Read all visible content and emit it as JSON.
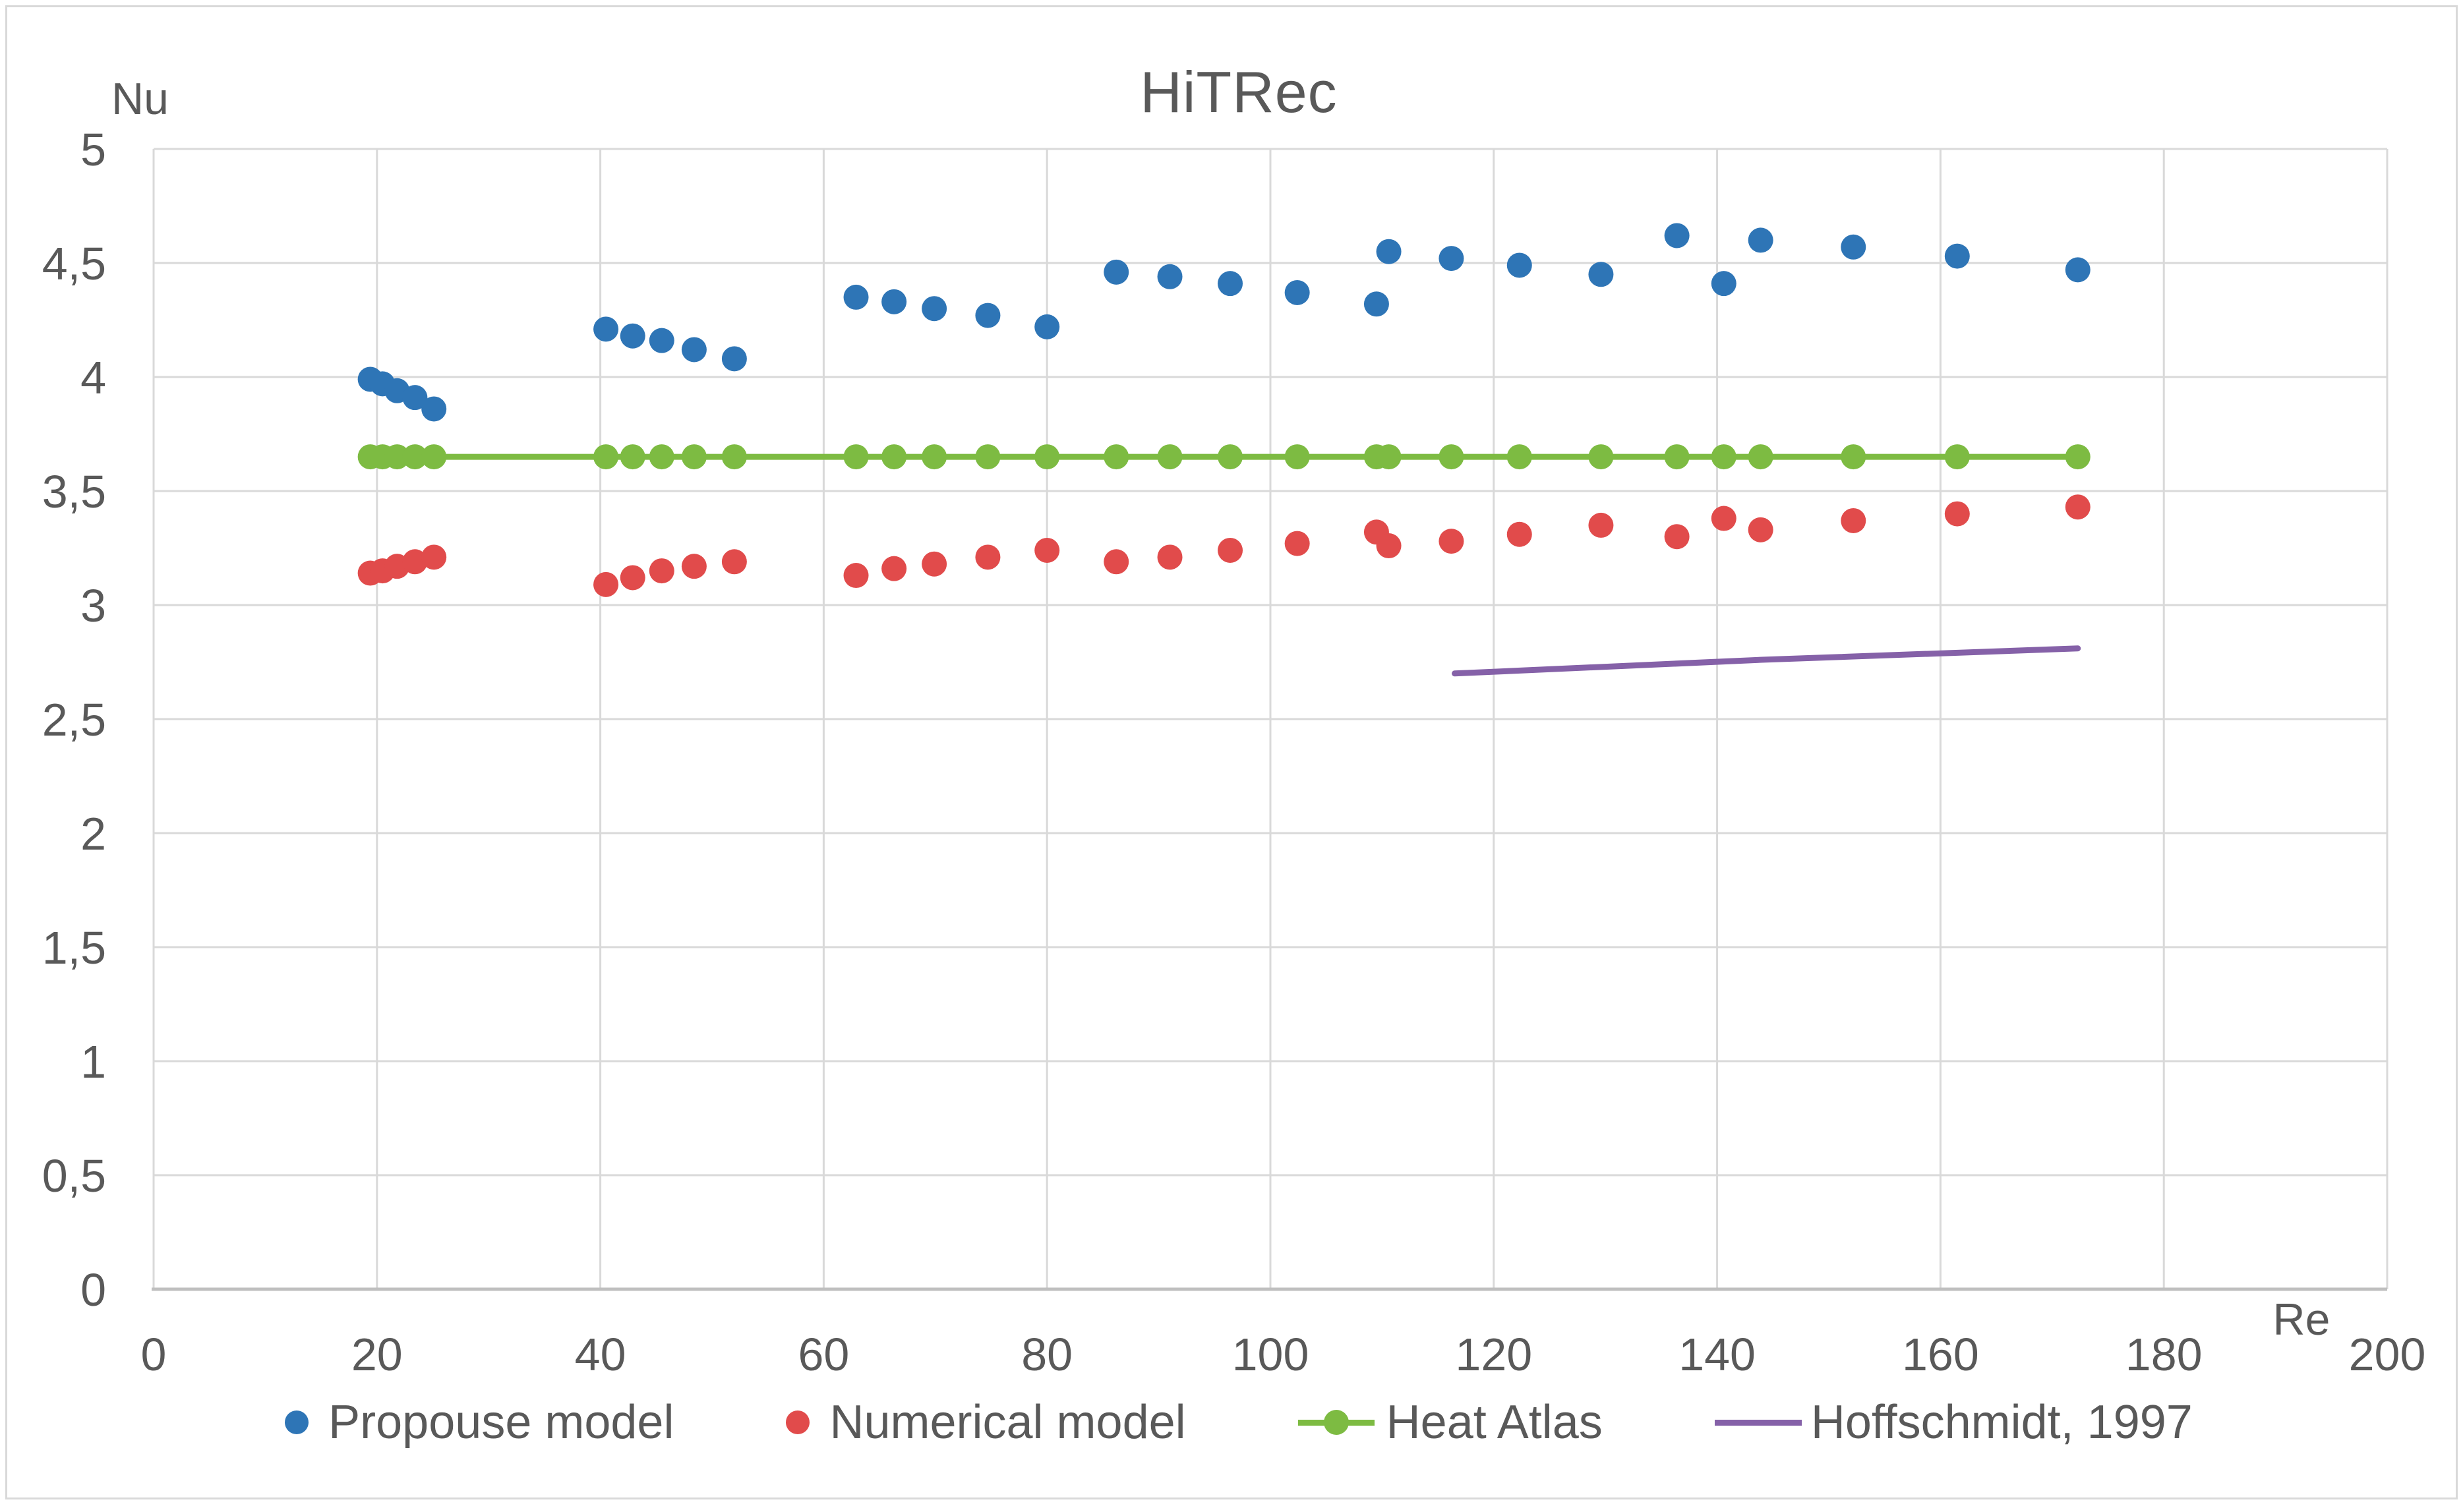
{
  "chart_data": {
    "type": "scatter",
    "title": "HiTRec",
    "xlabel": "Re",
    "ylabel": "Nu",
    "xlim": [
      0,
      200
    ],
    "ylim": [
      0,
      5
    ],
    "grid": true,
    "legend_position": "bottom",
    "x_ticks": {
      "values": [
        0,
        20,
        40,
        60,
        80,
        100,
        120,
        140,
        160,
        180,
        200
      ],
      "labels": [
        "0",
        "20",
        "40",
        "60",
        "80",
        "100",
        "120",
        "140",
        "160",
        "180",
        "200"
      ]
    },
    "y_ticks": {
      "values": [
        0,
        0.5,
        1,
        1.5,
        2,
        2.5,
        3,
        3.5,
        4,
        4.5,
        5
      ],
      "labels": [
        "0",
        "0,5",
        "1",
        "1,5",
        "2",
        "2,5",
        "3",
        "3,5",
        "4",
        "4,5",
        "5"
      ]
    },
    "series": [
      {
        "name": "Propouse model",
        "type": "scatter",
        "color": "#2E75B6",
        "x": [
          19.4,
          20.5,
          21.8,
          23.4,
          25.1,
          40.5,
          42.9,
          45.5,
          48.4,
          52.0,
          62.9,
          66.3,
          69.9,
          74.7,
          80.0,
          86.2,
          91.0,
          96.4,
          102.4,
          109.5,
          110.6,
          116.2,
          122.3,
          129.6,
          136.4,
          140.6,
          143.9,
          152.2,
          161.5,
          172.3
        ],
        "y": [
          3.99,
          3.97,
          3.94,
          3.91,
          3.86,
          4.21,
          4.18,
          4.16,
          4.12,
          4.08,
          4.35,
          4.33,
          4.3,
          4.27,
          4.22,
          4.46,
          4.44,
          4.41,
          4.37,
          4.32,
          4.55,
          4.52,
          4.49,
          4.45,
          4.62,
          4.41,
          4.6,
          4.57,
          4.53,
          4.47
        ]
      },
      {
        "name": "Numerical model",
        "type": "scatter",
        "color": "#E14B4B",
        "x": [
          19.4,
          20.5,
          21.8,
          23.4,
          25.1,
          40.5,
          42.9,
          45.5,
          48.4,
          52.0,
          62.9,
          66.3,
          69.9,
          74.7,
          80.0,
          86.2,
          91.0,
          96.4,
          102.4,
          109.5,
          110.6,
          116.2,
          122.3,
          129.6,
          136.4,
          140.6,
          143.9,
          152.2,
          161.5,
          172.3
        ],
        "y": [
          3.14,
          3.15,
          3.17,
          3.19,
          3.21,
          3.09,
          3.12,
          3.15,
          3.17,
          3.19,
          3.13,
          3.16,
          3.18,
          3.21,
          3.24,
          3.19,
          3.21,
          3.24,
          3.27,
          3.32,
          3.26,
          3.28,
          3.31,
          3.35,
          3.3,
          3.38,
          3.33,
          3.37,
          3.4,
          3.43
        ]
      },
      {
        "name": "Heat Atlas",
        "type": "line+marker",
        "color": "#7DBB42",
        "x": [
          19.4,
          20.5,
          21.8,
          23.4,
          25.1,
          40.5,
          42.9,
          45.5,
          48.4,
          52.0,
          62.9,
          66.3,
          69.9,
          74.7,
          80.0,
          86.2,
          91.0,
          96.4,
          102.4,
          109.5,
          110.6,
          116.2,
          122.3,
          129.6,
          136.4,
          140.6,
          143.9,
          152.2,
          161.5,
          172.3
        ],
        "y": [
          3.65,
          3.65,
          3.65,
          3.65,
          3.65,
          3.65,
          3.65,
          3.65,
          3.65,
          3.65,
          3.65,
          3.65,
          3.65,
          3.65,
          3.65,
          3.65,
          3.65,
          3.65,
          3.65,
          3.65,
          3.65,
          3.65,
          3.65,
          3.65,
          3.65,
          3.65,
          3.65,
          3.65,
          3.65,
          3.65
        ]
      },
      {
        "name": "Hoffschmidt, 1997",
        "type": "line",
        "color": "#8561A8",
        "x": [
          116.5,
          144.0,
          172.3
        ],
        "y": [
          2.7,
          2.76,
          2.81
        ]
      }
    ],
    "colors": {
      "gridline": "#D9D9D9",
      "axis_line": "#BFBFBF",
      "text": "#595959"
    }
  }
}
